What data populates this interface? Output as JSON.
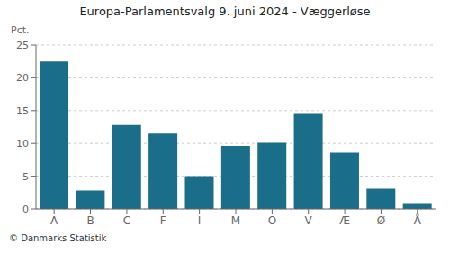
{
  "chart_data": {
    "type": "bar",
    "title": "Europa-Parlamentsvalg 9. juni 2024 - Væggerløse",
    "categories": [
      "A",
      "B",
      "C",
      "F",
      "I",
      "M",
      "O",
      "V",
      "Æ",
      "Ø",
      "Å"
    ],
    "values": [
      22.5,
      2.8,
      12.8,
      11.5,
      5.0,
      9.6,
      10.1,
      14.5,
      8.6,
      3.1,
      0.9
    ],
    "color": "#1a6e8a",
    "ylabel": "Pct.",
    "ylim": [
      0,
      25
    ],
    "yticks": [
      0,
      5,
      10,
      15,
      20,
      25
    ],
    "grid": true,
    "annotations": [
      "© Danmarks Statistik"
    ]
  }
}
